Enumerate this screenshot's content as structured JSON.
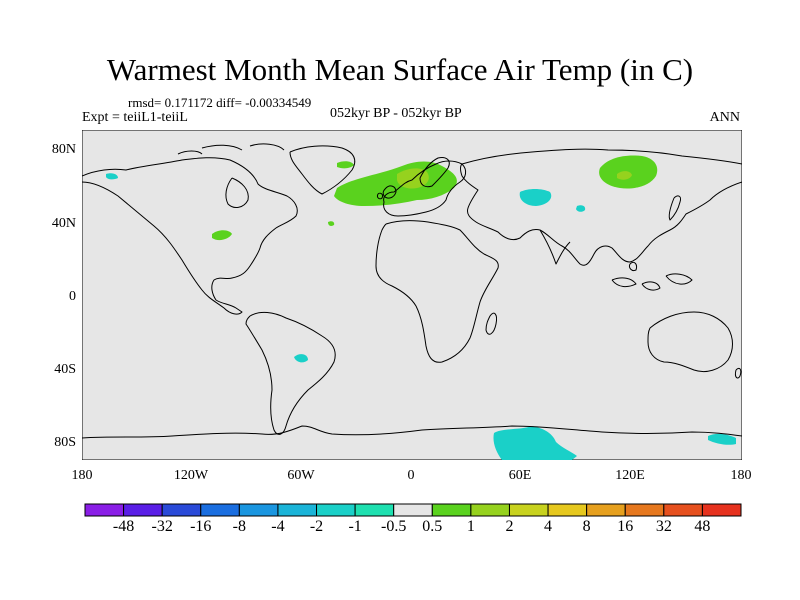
{
  "title": "Warmest Month Mean Surface Air Temp (in C)",
  "stats_line": "rmsd= 0.171172 diff= -0.00334549",
  "experiment": "Expt = teiiL1-teiiL",
  "subtitle": "052kyr BP - 052kyr BP",
  "season": "ANN",
  "lat_labels": [
    "80N",
    "40N",
    "0",
    "40S",
    "80S"
  ],
  "lon_labels": [
    "180",
    "120W",
    "60W",
    "0",
    "60E",
    "120E",
    "180"
  ],
  "colorbar": {
    "labels": [
      "-48",
      "-32",
      "-16",
      "-8",
      "-4",
      "-2",
      "-1",
      "-0.5",
      "0.5",
      "1",
      "2",
      "4",
      "8",
      "16",
      "32",
      "48"
    ],
    "colors": [
      "#8a1ee6",
      "#5a1ee6",
      "#2a4ad8",
      "#1a6ee0",
      "#1a96e0",
      "#1ab4d8",
      "#1ad0c8",
      "#1ee0b0",
      "#e6e6e6",
      "#5ad21e",
      "#96d21e",
      "#c8d21e",
      "#e6c81e",
      "#e6a01e",
      "#e6781e",
      "#e6501e",
      "#e6321e"
    ]
  },
  "map": {
    "background_color": "#e6e6e6",
    "coastline_color": "#000000",
    "anomaly_regions": [
      {
        "name": "north-atlantic-europe-warming",
        "color": "#5ad21e"
      },
      {
        "name": "scandinavia-warming-core",
        "color": "#96d21e"
      },
      {
        "name": "siberia-warming",
        "color": "#5ad21e"
      },
      {
        "name": "siberia-warming-core",
        "color": "#96d21e"
      },
      {
        "name": "central-asia-cooling",
        "color": "#1ad0c8"
      },
      {
        "name": "antarctica-cooling",
        "color": "#1ad0c8"
      }
    ]
  }
}
